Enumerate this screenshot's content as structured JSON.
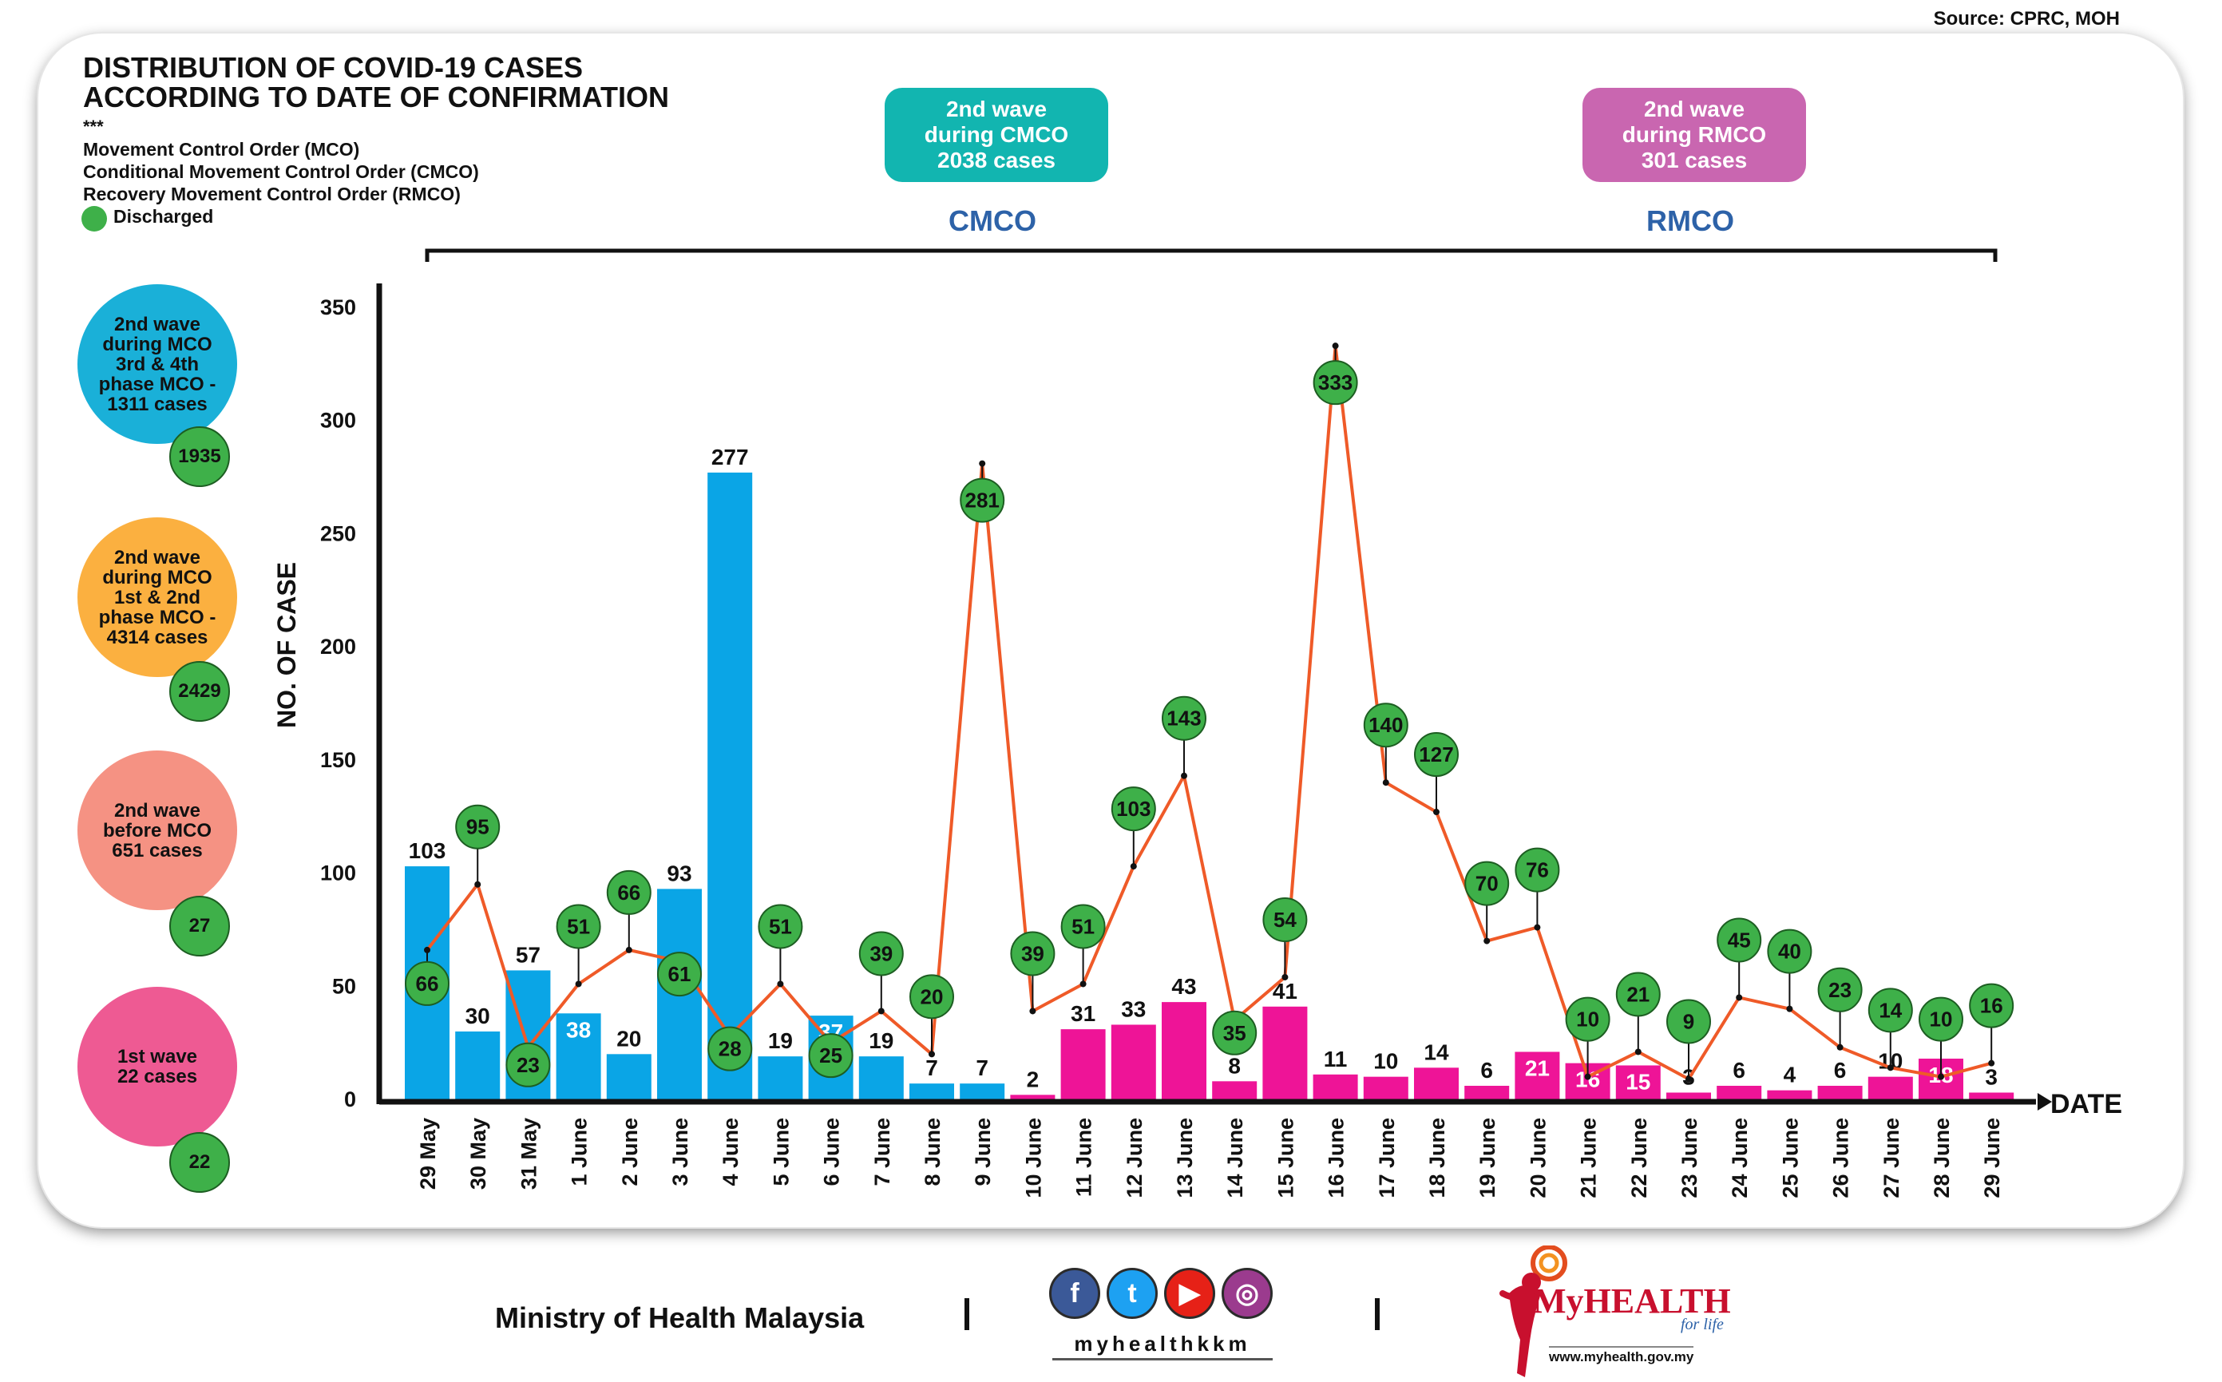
{
  "source": "Source: CPRC, MOH",
  "title_line1": "DISTRIBUTION OF COVID-19 CASES",
  "title_line2": "ACCORDING TO DATE OF CONFIRMATION",
  "stars": "***",
  "legend": {
    "mco": "Movement Control Order (MCO)",
    "cmco": "Conditional Movement Control Order (CMCO)",
    "rmco": "Recovery Movement Control Order (RMCO)",
    "discharged": "Discharged",
    "discharged_color": "#3eb049"
  },
  "wave_boxes": {
    "cmco": {
      "l1": "2nd wave",
      "l2": "during CMCO",
      "l3": "2038 cases",
      "color": "#12b5b0"
    },
    "rmco": {
      "l1": "2nd wave",
      "l2": "during RMCO",
      "l3": "301 cases",
      "color": "#c966b0"
    }
  },
  "phases": {
    "cmco": "CMCO",
    "rmco": "RMCO"
  },
  "bubbles": [
    {
      "l1": "2nd wave",
      "l2": "during MCO",
      "l3": "3rd & 4th",
      "l4": "phase MCO -",
      "l5": "1311 cases",
      "discharged": "1935",
      "color": "#1ab0d8"
    },
    {
      "l1": "2nd wave",
      "l2": "during MCO",
      "l3": "1st & 2nd",
      "l4": "phase MCO -",
      "l5": "4314 cases",
      "discharged": "2429",
      "color": "#fbb040"
    },
    {
      "l1": "2nd wave",
      "l2": "before MCO",
      "l3": "651 cases",
      "discharged": "27",
      "color": "#f59283"
    },
    {
      "l1": "1st wave",
      "l2": "22 cases",
      "discharged": "22",
      "color": "#ee5a93"
    }
  ],
  "chart_data": {
    "type": "bar",
    "xlabel": "DATE",
    "ylabel": "NO. OF CASE",
    "ylim": [
      0,
      350
    ],
    "yticks": [
      0,
      50,
      100,
      150,
      200,
      250,
      300,
      350
    ],
    "grid": false,
    "categories": [
      "29 May",
      "30 May",
      "31 May",
      "1 June",
      "2 June",
      "3 June",
      "4 June",
      "5 June",
      "6 June",
      "7 June",
      "8 June",
      "9 June",
      "10 June",
      "11 June",
      "12 June",
      "13 June",
      "14 June",
      "15 June",
      "16 June",
      "17 June",
      "18 June",
      "19 June",
      "20 June",
      "21 June",
      "22 June",
      "23 June",
      "24 June",
      "25 June",
      "26 June",
      "27 June",
      "28 June",
      "29 June"
    ],
    "series": [
      {
        "values": [
          103,
          30,
          57,
          38,
          20,
          93,
          277,
          19,
          37,
          19,
          7,
          7,
          2,
          31,
          33,
          43,
          8,
          41,
          11,
          10,
          14,
          6,
          21,
          16,
          15,
          3,
          6,
          4,
          6,
          10,
          18,
          3
        ],
        "colors": [
          "#0aa5e6",
          "#0aa5e6",
          "#0aa5e6",
          "#0aa5e6",
          "#0aa5e6",
          "#0aa5e6",
          "#0aa5e6",
          "#0aa5e6",
          "#0aa5e6",
          "#0aa5e6",
          "#0aa5e6",
          "#0aa5e6",
          "#ee1497",
          "#ee1497",
          "#ee1497",
          "#ee1497",
          "#ee1497",
          "#ee1497",
          "#ee1497",
          "#ee1497",
          "#ee1497",
          "#ee1497",
          "#ee1497",
          "#ee1497",
          "#ee1497",
          "#ee1497",
          "#ee1497",
          "#ee1497",
          "#ee1497",
          "#ee1497",
          "#ee1497",
          "#ee1497"
        ]
      },
      {
        "name": "Discharged",
        "type": "line",
        "color": "#ef5a28",
        "values": [
          66,
          95,
          23,
          51,
          66,
          61,
          28,
          51,
          25,
          39,
          20,
          281,
          39,
          51,
          103,
          143,
          35,
          54,
          333,
          140,
          127,
          70,
          76,
          10,
          21,
          9,
          45,
          40,
          23,
          14,
          10,
          16
        ]
      }
    ]
  },
  "footer": {
    "ministry": "Ministry of Health Malaysia",
    "handle": "myhealthkkm",
    "social": [
      {
        "icon": "facebook-icon",
        "glyph": "f",
        "color": "#3b5998"
      },
      {
        "icon": "twitter-icon",
        "glyph": "t",
        "color": "#1da1f2"
      },
      {
        "icon": "youtube-icon",
        "glyph": "▶",
        "color": "#e62117"
      },
      {
        "icon": "instagram-icon",
        "glyph": "◎",
        "color": "#9b3b8e"
      }
    ],
    "brand": "MyHEALTH",
    "tagline": "for life",
    "url": "www.myhealth.gov.my"
  }
}
